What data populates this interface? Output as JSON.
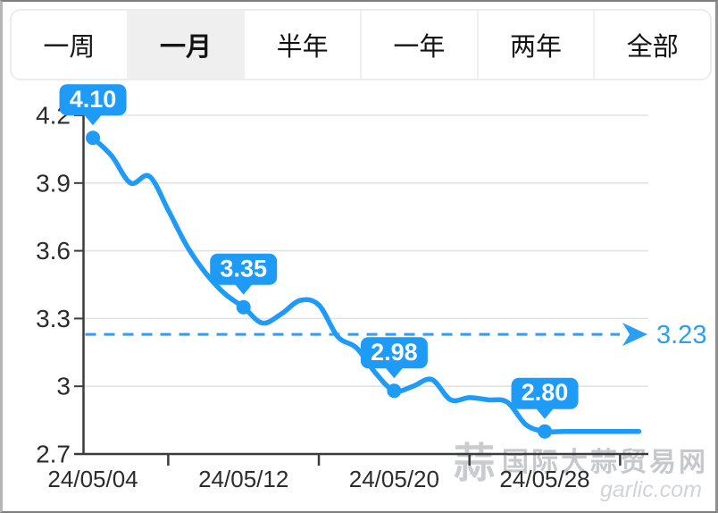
{
  "tabs": {
    "items": [
      {
        "id": "one-week",
        "label": "一周",
        "selected": false
      },
      {
        "id": "one-month",
        "label": "一月",
        "selected": true
      },
      {
        "id": "half-year",
        "label": "半年",
        "selected": false
      },
      {
        "id": "one-year",
        "label": "一年",
        "selected": false
      },
      {
        "id": "two-years",
        "label": "两年",
        "selected": false
      },
      {
        "id": "all",
        "label": "全部",
        "selected": false
      }
    ]
  },
  "watermark": {
    "logo_glyph": "蒜",
    "site_name": "国际大蒜贸易网",
    "domain": "garlic.com"
  },
  "chart_data": {
    "type": "line",
    "title": "",
    "xlabel": "",
    "ylabel": "",
    "ylim": [
      2.7,
      4.2
    ],
    "grid": true,
    "smooth": true,
    "x": [
      "24/05/04",
      "24/05/05",
      "24/05/06",
      "24/05/07",
      "24/05/08",
      "24/05/09",
      "24/05/10",
      "24/05/11",
      "24/05/12",
      "24/05/13",
      "24/05/14",
      "24/05/15",
      "24/05/16",
      "24/05/17",
      "24/05/18",
      "24/05/19",
      "24/05/20",
      "24/05/21",
      "24/05/22",
      "24/05/23",
      "24/05/24",
      "24/05/25",
      "24/05/26",
      "24/05/27",
      "24/05/28",
      "24/05/29",
      "24/05/30",
      "24/05/31",
      "24/06/01",
      "24/06/02"
    ],
    "values": [
      4.1,
      4.02,
      3.9,
      3.93,
      3.78,
      3.62,
      3.5,
      3.41,
      3.35,
      3.28,
      3.32,
      3.38,
      3.36,
      3.22,
      3.17,
      3.06,
      2.98,
      3.0,
      3.03,
      2.94,
      2.95,
      2.94,
      2.93,
      2.83,
      2.8,
      2.8,
      2.8,
      2.8,
      2.8,
      2.8
    ],
    "y_ticks": [
      {
        "label": "4.2",
        "value": 4.2
      },
      {
        "label": "3.9",
        "value": 3.9
      },
      {
        "label": "3.6",
        "value": 3.6
      },
      {
        "label": "3.3",
        "value": 3.3
      },
      {
        "label": "3",
        "value": 3.0
      },
      {
        "label": "2.7",
        "value": 2.7
      }
    ],
    "x_axis_labels": [
      {
        "label": "24/05/04",
        "index": 0
      },
      {
        "label": "24/05/12",
        "index": 8
      },
      {
        "label": "24/05/20",
        "index": 16
      },
      {
        "label": "24/05/28",
        "index": 24
      }
    ],
    "marked_points": [
      {
        "index": 0,
        "label": "4.10",
        "value": 4.1
      },
      {
        "index": 8,
        "label": "3.35",
        "value": 3.35
      },
      {
        "index": 16,
        "label": "2.98",
        "value": 2.98
      },
      {
        "index": 24,
        "label": "2.80",
        "value": 2.8
      }
    ],
    "average_line": {
      "value": 3.23,
      "label": "3.23",
      "style": "dashed",
      "arrow": true
    },
    "legend": null,
    "colors": {
      "line": "#1e9af7",
      "bubble": "#1e9af7",
      "bubble_text": "#ffffff",
      "average": "#2a9ff7",
      "grid": "#e2e2e2",
      "axis": "#3b3b3b",
      "text": "#2c2c2c"
    }
  }
}
